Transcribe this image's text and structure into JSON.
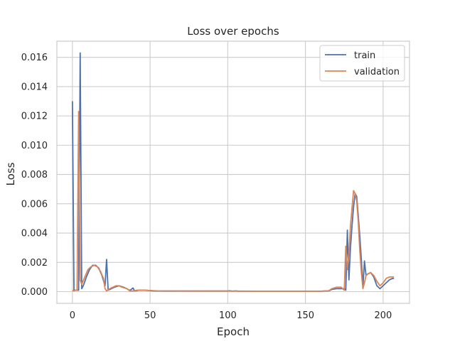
{
  "chart_data": {
    "type": "line",
    "title": "Loss over epochs",
    "xlabel": "Epoch",
    "ylabel": "Loss",
    "xlim": [
      -10,
      217
    ],
    "ylim": [
      -0.0008,
      0.0171
    ],
    "xticks": [
      0,
      50,
      100,
      150,
      200
    ],
    "xtick_labels": [
      "0",
      "50",
      "100",
      "150",
      "200"
    ],
    "yticks": [
      0.0,
      0.002,
      0.004,
      0.006,
      0.008,
      0.01,
      0.012,
      0.014,
      0.016
    ],
    "ytick_labels": [
      "0.000",
      "0.002",
      "0.004",
      "0.006",
      "0.008",
      "0.010",
      "0.012",
      "0.014",
      "0.016"
    ],
    "grid": true,
    "legend": "top-right",
    "series": [
      {
        "name": "train",
        "color": "#4c72b0",
        "points": [
          [
            0,
            0.013
          ],
          [
            1,
            0.0001
          ],
          [
            2,
            0.0001
          ],
          [
            3,
            0.0001
          ],
          [
            4,
            0.0001
          ],
          [
            5,
            0.0163
          ],
          [
            6,
            0.0002
          ],
          [
            7,
            0.0004
          ],
          [
            9,
            0.001
          ],
          [
            11,
            0.0015
          ],
          [
            13,
            0.0018
          ],
          [
            15,
            0.0018
          ],
          [
            17,
            0.0016
          ],
          [
            19,
            0.0011
          ],
          [
            21,
            0.0004
          ],
          [
            22,
            0.0022
          ],
          [
            23,
            0.0001
          ],
          [
            25,
            0.0002
          ],
          [
            27,
            0.0003
          ],
          [
            30,
            0.0004
          ],
          [
            33,
            0.0003
          ],
          [
            35,
            0.0002
          ],
          [
            37,
            8e-05
          ],
          [
            39,
            0.00025
          ],
          [
            40,
            5e-05
          ],
          [
            43,
            0.0001
          ],
          [
            46,
            0.0001
          ],
          [
            49,
            8e-05
          ],
          [
            52,
            5e-05
          ],
          [
            60,
            4e-05
          ],
          [
            80,
            4e-05
          ],
          [
            100,
            4e-05
          ],
          [
            101,
            6e-05
          ],
          [
            103,
            3e-05
          ],
          [
            105,
            5e-05
          ],
          [
            107,
            3e-05
          ],
          [
            120,
            3e-05
          ],
          [
            140,
            3e-05
          ],
          [
            160,
            3e-05
          ],
          [
            165,
            5e-05
          ],
          [
            167,
            0.00015
          ],
          [
            170,
            0.0002
          ],
          [
            173,
            0.0002
          ],
          [
            175,
            0.0002
          ],
          [
            176,
            0.0001
          ],
          [
            177,
            0.0042
          ],
          [
            178,
            0.0008
          ],
          [
            179,
            0.003
          ],
          [
            180,
            0.0045
          ],
          [
            181,
            0.0058
          ],
          [
            182,
            0.0067
          ],
          [
            183,
            0.0065
          ],
          [
            184,
            0.0052
          ],
          [
            185,
            0.0038
          ],
          [
            186,
            0.0022
          ],
          [
            187,
            0.0003
          ],
          [
            188,
            0.0021
          ],
          [
            189,
            0.0011
          ],
          [
            190,
            0.0012
          ],
          [
            192,
            0.0013
          ],
          [
            194,
            0.001
          ],
          [
            196,
            0.0004
          ],
          [
            198,
            0.0002
          ],
          [
            200,
            0.0004
          ],
          [
            202,
            0.0006
          ],
          [
            204,
            0.0008
          ],
          [
            206,
            0.0009
          ],
          [
            207,
            0.0009
          ]
        ]
      },
      {
        "name": "validation",
        "color": "#dd8452",
        "points": [
          [
            0,
            0.0001
          ],
          [
            1,
            5e-05
          ],
          [
            2,
            0.0001
          ],
          [
            3,
            0.0001
          ],
          [
            4,
            0.0123
          ],
          [
            5,
            0.0008
          ],
          [
            6,
            0.0005
          ],
          [
            8,
            0.001
          ],
          [
            10,
            0.0015
          ],
          [
            12,
            0.0017
          ],
          [
            14,
            0.0018
          ],
          [
            16,
            0.0017
          ],
          [
            18,
            0.0014
          ],
          [
            20,
            0.0009
          ],
          [
            21,
            0.0002
          ],
          [
            22,
            5e-05
          ],
          [
            24,
            0.0002
          ],
          [
            26,
            0.0003
          ],
          [
            28,
            0.0004
          ],
          [
            30,
            0.0004
          ],
          [
            32,
            0.0003
          ],
          [
            35,
            0.0002
          ],
          [
            37,
            5e-05
          ],
          [
            39,
            5e-05
          ],
          [
            42,
            0.0001
          ],
          [
            46,
            0.0001
          ],
          [
            50,
            8e-05
          ],
          [
            55,
            5e-05
          ],
          [
            80,
            4e-05
          ],
          [
            100,
            4e-05
          ],
          [
            120,
            3e-05
          ],
          [
            140,
            3e-05
          ],
          [
            160,
            3e-05
          ],
          [
            165,
            6e-05
          ],
          [
            167,
            0.0002
          ],
          [
            170,
            0.0003
          ],
          [
            173,
            0.0003
          ],
          [
            175,
            0.0001
          ],
          [
            176,
            0.0031
          ],
          [
            177,
            0.0015
          ],
          [
            178,
            0.0026
          ],
          [
            179,
            0.0045
          ],
          [
            180,
            0.0057
          ],
          [
            181,
            0.0069
          ],
          [
            182,
            0.0067
          ],
          [
            183,
            0.0062
          ],
          [
            184,
            0.0048
          ],
          [
            185,
            0.0028
          ],
          [
            186,
            0.0013
          ],
          [
            187,
            0.0002
          ],
          [
            188,
            0.0006
          ],
          [
            189,
            0.0011
          ],
          [
            190,
            0.0012
          ],
          [
            192,
            0.0013
          ],
          [
            194,
            0.0011
          ],
          [
            196,
            0.0007
          ],
          [
            198,
            0.0004
          ],
          [
            200,
            0.0006
          ],
          [
            202,
            0.0009
          ],
          [
            204,
            0.001
          ],
          [
            206,
            0.001
          ],
          [
            207,
            0.001
          ]
        ]
      }
    ]
  }
}
